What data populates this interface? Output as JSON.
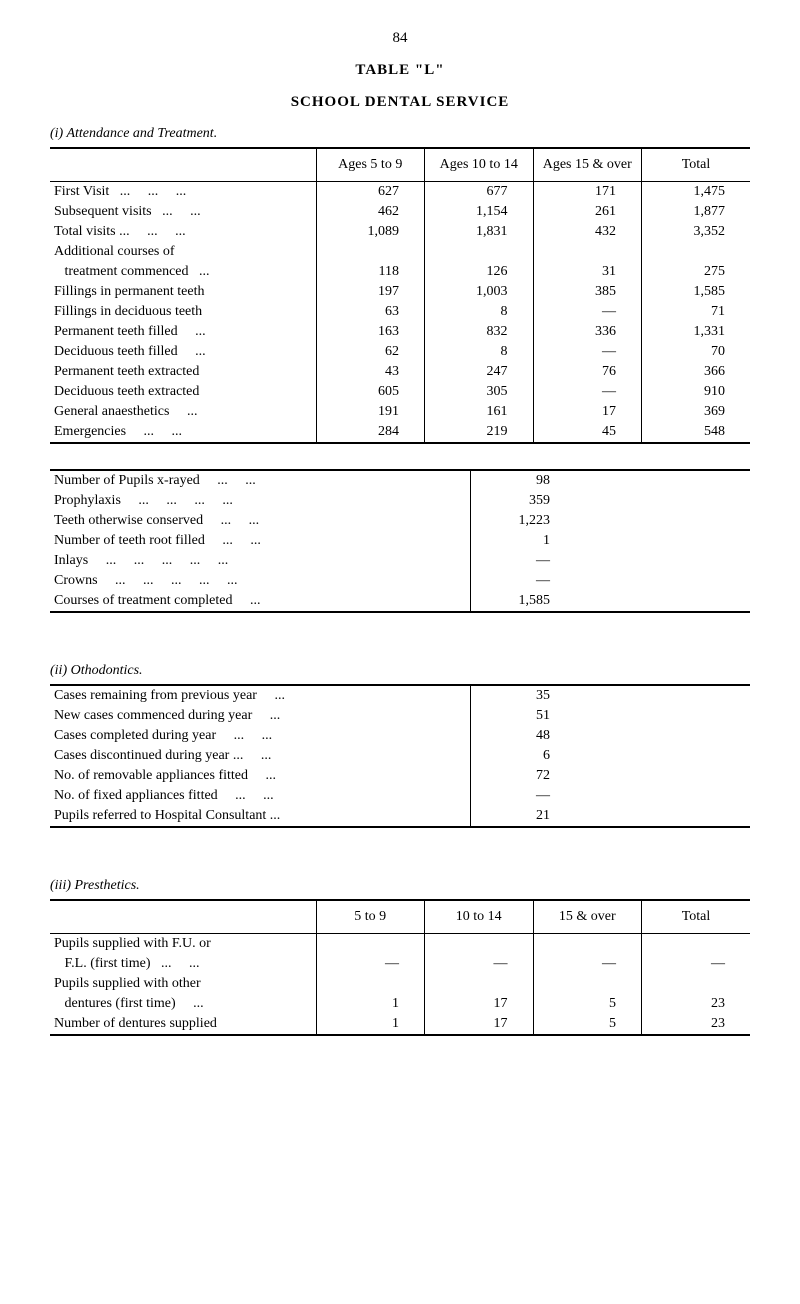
{
  "page_number": "84",
  "table_label": "TABLE \"L\"",
  "service_title": "SCHOOL DENTAL SERVICE",
  "section_i": {
    "heading": "(i)   Attendance and Treatment.",
    "columns": [
      "",
      "Ages 5 to 9",
      "Ages 10 to 14",
      "Ages 15 & over",
      "Total"
    ],
    "rows": [
      {
        "label": "First Visit   ...     ...     ...",
        "v1": "627",
        "v2": "677",
        "v3": "171",
        "v4": "1,475"
      },
      {
        "label": "Subsequent visits   ...     ...",
        "v1": "462",
        "v2": "1,154",
        "v3": "261",
        "v4": "1,877"
      },
      {
        "label": "Total visits ...     ...     ...",
        "v1": "1,089",
        "v2": "1,831",
        "v3": "432",
        "v4": "3,352"
      },
      {
        "label": "Additional courses of",
        "v1": "",
        "v2": "",
        "v3": "",
        "v4": ""
      },
      {
        "label": "   treatment commenced   ...",
        "v1": "118",
        "v2": "126",
        "v3": "31",
        "v4": "275"
      },
      {
        "label": "Fillings in permanent teeth",
        "v1": "197",
        "v2": "1,003",
        "v3": "385",
        "v4": "1,585"
      },
      {
        "label": "Fillings in deciduous teeth",
        "v1": "63",
        "v2": "8",
        "v3": "—",
        "v4": "71"
      },
      {
        "label": "Permanent teeth filled     ...",
        "v1": "163",
        "v2": "832",
        "v3": "336",
        "v4": "1,331"
      },
      {
        "label": "Deciduous teeth filled     ...",
        "v1": "62",
        "v2": "8",
        "v3": "—",
        "v4": "70"
      },
      {
        "label": "Permanent teeth extracted",
        "v1": "43",
        "v2": "247",
        "v3": "76",
        "v4": "366"
      },
      {
        "label": "Deciduous teeth extracted",
        "v1": "605",
        "v2": "305",
        "v3": "—",
        "v4": "910"
      },
      {
        "label": "General anaesthetics     ...",
        "v1": "191",
        "v2": "161",
        "v3": "17",
        "v4": "369"
      },
      {
        "label": "Emergencies     ...     ...",
        "v1": "284",
        "v2": "219",
        "v3": "45",
        "v4": "548"
      }
    ]
  },
  "section_i_sub": {
    "rows": [
      {
        "label": "Number of Pupils x-rayed     ...     ...",
        "val": "98"
      },
      {
        "label": "Prophylaxis     ...     ...     ...     ...",
        "val": "359"
      },
      {
        "label": "Teeth otherwise conserved     ...     ...",
        "val": "1,223"
      },
      {
        "label": "Number of teeth root filled     ...     ...",
        "val": "1"
      },
      {
        "label": "Inlays     ...     ...     ...     ...     ...",
        "val": "—"
      },
      {
        "label": "Crowns     ...     ...     ...     ...     ...",
        "val": "—"
      },
      {
        "label": "Courses of treatment completed     ...",
        "val": "1,585"
      }
    ]
  },
  "section_ii": {
    "heading": "(ii)   Othodontics.",
    "rows": [
      {
        "label": "Cases remaining from previous year     ...",
        "val": "35"
      },
      {
        "label": "New cases commenced during year     ...",
        "val": "51"
      },
      {
        "label": "Cases completed during year     ...     ...",
        "val": "48"
      },
      {
        "label": "Cases discontinued during year ...     ...",
        "val": "6"
      },
      {
        "label": "No. of removable appliances fitted     ...",
        "val": "72"
      },
      {
        "label": "No. of fixed appliances fitted     ...     ...",
        "val": "—"
      },
      {
        "label": "Pupils referred to Hospital Consultant ...",
        "val": "21"
      }
    ]
  },
  "section_iii": {
    "heading": "(iii)   Presthetics.",
    "columns": [
      "",
      "5 to 9",
      "10 to 14",
      "15 & over",
      "Total"
    ],
    "rows": [
      {
        "label": "Pupils supplied with F.U. or",
        "v1": "",
        "v2": "",
        "v3": "",
        "v4": ""
      },
      {
        "label": "   F.L. (first time)   ...     ...",
        "v1": "—",
        "v2": "—",
        "v3": "—",
        "v4": "—"
      },
      {
        "label": "Pupils supplied with other",
        "v1": "",
        "v2": "",
        "v3": "",
        "v4": ""
      },
      {
        "label": "   dentures (first time)     ...",
        "v1": "1",
        "v2": "17",
        "v3": "5",
        "v4": "23"
      },
      {
        "label": "Number of dentures supplied",
        "v1": "1",
        "v2": "17",
        "v3": "5",
        "v4": "23"
      }
    ]
  }
}
